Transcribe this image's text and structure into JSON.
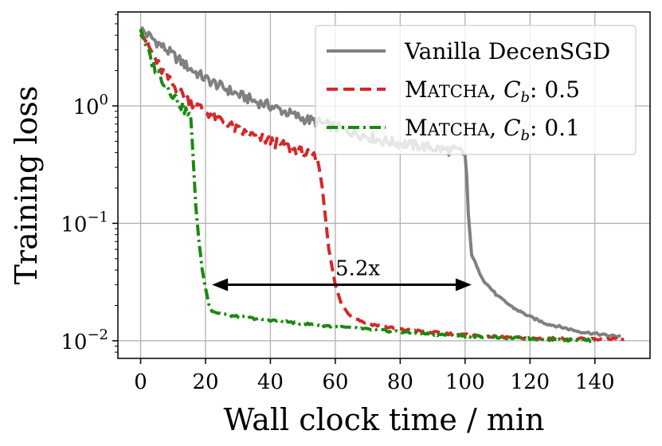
{
  "chart_data": {
    "type": "line",
    "title": "",
    "xlabel": "Wall clock time / min",
    "ylabel": "Training loss",
    "xlim": [
      -7,
      157
    ],
    "ylim_log10": [
      -2.15,
      0.8
    ],
    "yscale": "log",
    "grid": true,
    "legend_position": "top-right",
    "x_ticks": [
      0,
      20,
      40,
      60,
      80,
      100,
      120,
      140
    ],
    "x_tick_labels": [
      "0",
      "20",
      "40",
      "60",
      "80",
      "100",
      "120",
      "140"
    ],
    "y_ticks_log10": [
      0,
      -1,
      -2
    ],
    "y_tick_bases": [
      "10",
      "10",
      "10"
    ],
    "y_tick_exponents": [
      "0",
      "−1",
      "−2"
    ],
    "series": [
      {
        "name": "Vanilla DecenSGD",
        "name_parts": [
          "Vanilla DecenSGD"
        ],
        "color": "#808080",
        "dash": "solid",
        "x": [
          0,
          5,
          10,
          15,
          20,
          25,
          30,
          35,
          40,
          45,
          50,
          55,
          60,
          65,
          70,
          75,
          80,
          85,
          90,
          95,
          99,
          100,
          100.5,
          101,
          102,
          104,
          106,
          110,
          115,
          120,
          125,
          130,
          135,
          140,
          145,
          148
        ],
        "y": [
          4.5,
          3.5,
          2.7,
          2.1,
          1.7,
          1.45,
          1.25,
          1.1,
          1.0,
          0.88,
          0.78,
          0.72,
          0.66,
          0.6,
          0.55,
          0.5,
          0.48,
          0.46,
          0.44,
          0.42,
          0.41,
          0.38,
          0.25,
          0.12,
          0.055,
          0.04,
          0.032,
          0.024,
          0.019,
          0.016,
          0.014,
          0.013,
          0.012,
          0.0115,
          0.011,
          0.011
        ]
      },
      {
        "name": "Matcha, Cb: 0.5",
        "name_parts": [
          "M",
          "ATCHA",
          ", ",
          "C",
          "b",
          ": 0.5"
        ],
        "color": "#d62728",
        "dash": "dashed",
        "x": [
          0,
          3,
          6,
          10,
          15,
          20,
          25,
          30,
          35,
          40,
          45,
          50,
          53,
          54,
          55,
          56,
          57,
          58,
          60,
          62,
          65,
          70,
          80,
          90,
          100,
          110,
          120,
          130,
          140,
          149
        ],
        "y": [
          4.5,
          3.0,
          2.1,
          1.5,
          1.1,
          0.9,
          0.75,
          0.62,
          0.55,
          0.5,
          0.45,
          0.4,
          0.38,
          0.35,
          0.3,
          0.2,
          0.11,
          0.06,
          0.03,
          0.02,
          0.016,
          0.014,
          0.0125,
          0.0118,
          0.0112,
          0.0108,
          0.0105,
          0.0104,
          0.0103,
          0.0103
        ]
      },
      {
        "name": "Matcha, Cb: 0.1",
        "name_parts": [
          "M",
          "ATCHA",
          ", ",
          "C",
          "b",
          ": 0.1"
        ],
        "color": "#1a8a10",
        "dash": "dashdot",
        "x": [
          0,
          2,
          4,
          6,
          8,
          10,
          12,
          14,
          15,
          15.5,
          16,
          16.5,
          17,
          18,
          19,
          20,
          21,
          22,
          24,
          30,
          40,
          50,
          60,
          70,
          80,
          90,
          100,
          110,
          120,
          130,
          140
        ],
        "y": [
          4.5,
          3.0,
          2.2,
          1.8,
          1.5,
          1.25,
          1.05,
          0.9,
          0.82,
          0.78,
          0.45,
          0.25,
          0.14,
          0.07,
          0.04,
          0.028,
          0.021,
          0.018,
          0.0172,
          0.016,
          0.015,
          0.014,
          0.0132,
          0.0125,
          0.0119,
          0.0114,
          0.011,
          0.0107,
          0.0104,
          0.0102,
          0.0101
        ]
      }
    ],
    "annotations": [
      {
        "text": "5.2x",
        "type": "double-arrow",
        "x_start": 22,
        "x_end": 102,
        "y_value": 0.03
      }
    ]
  }
}
